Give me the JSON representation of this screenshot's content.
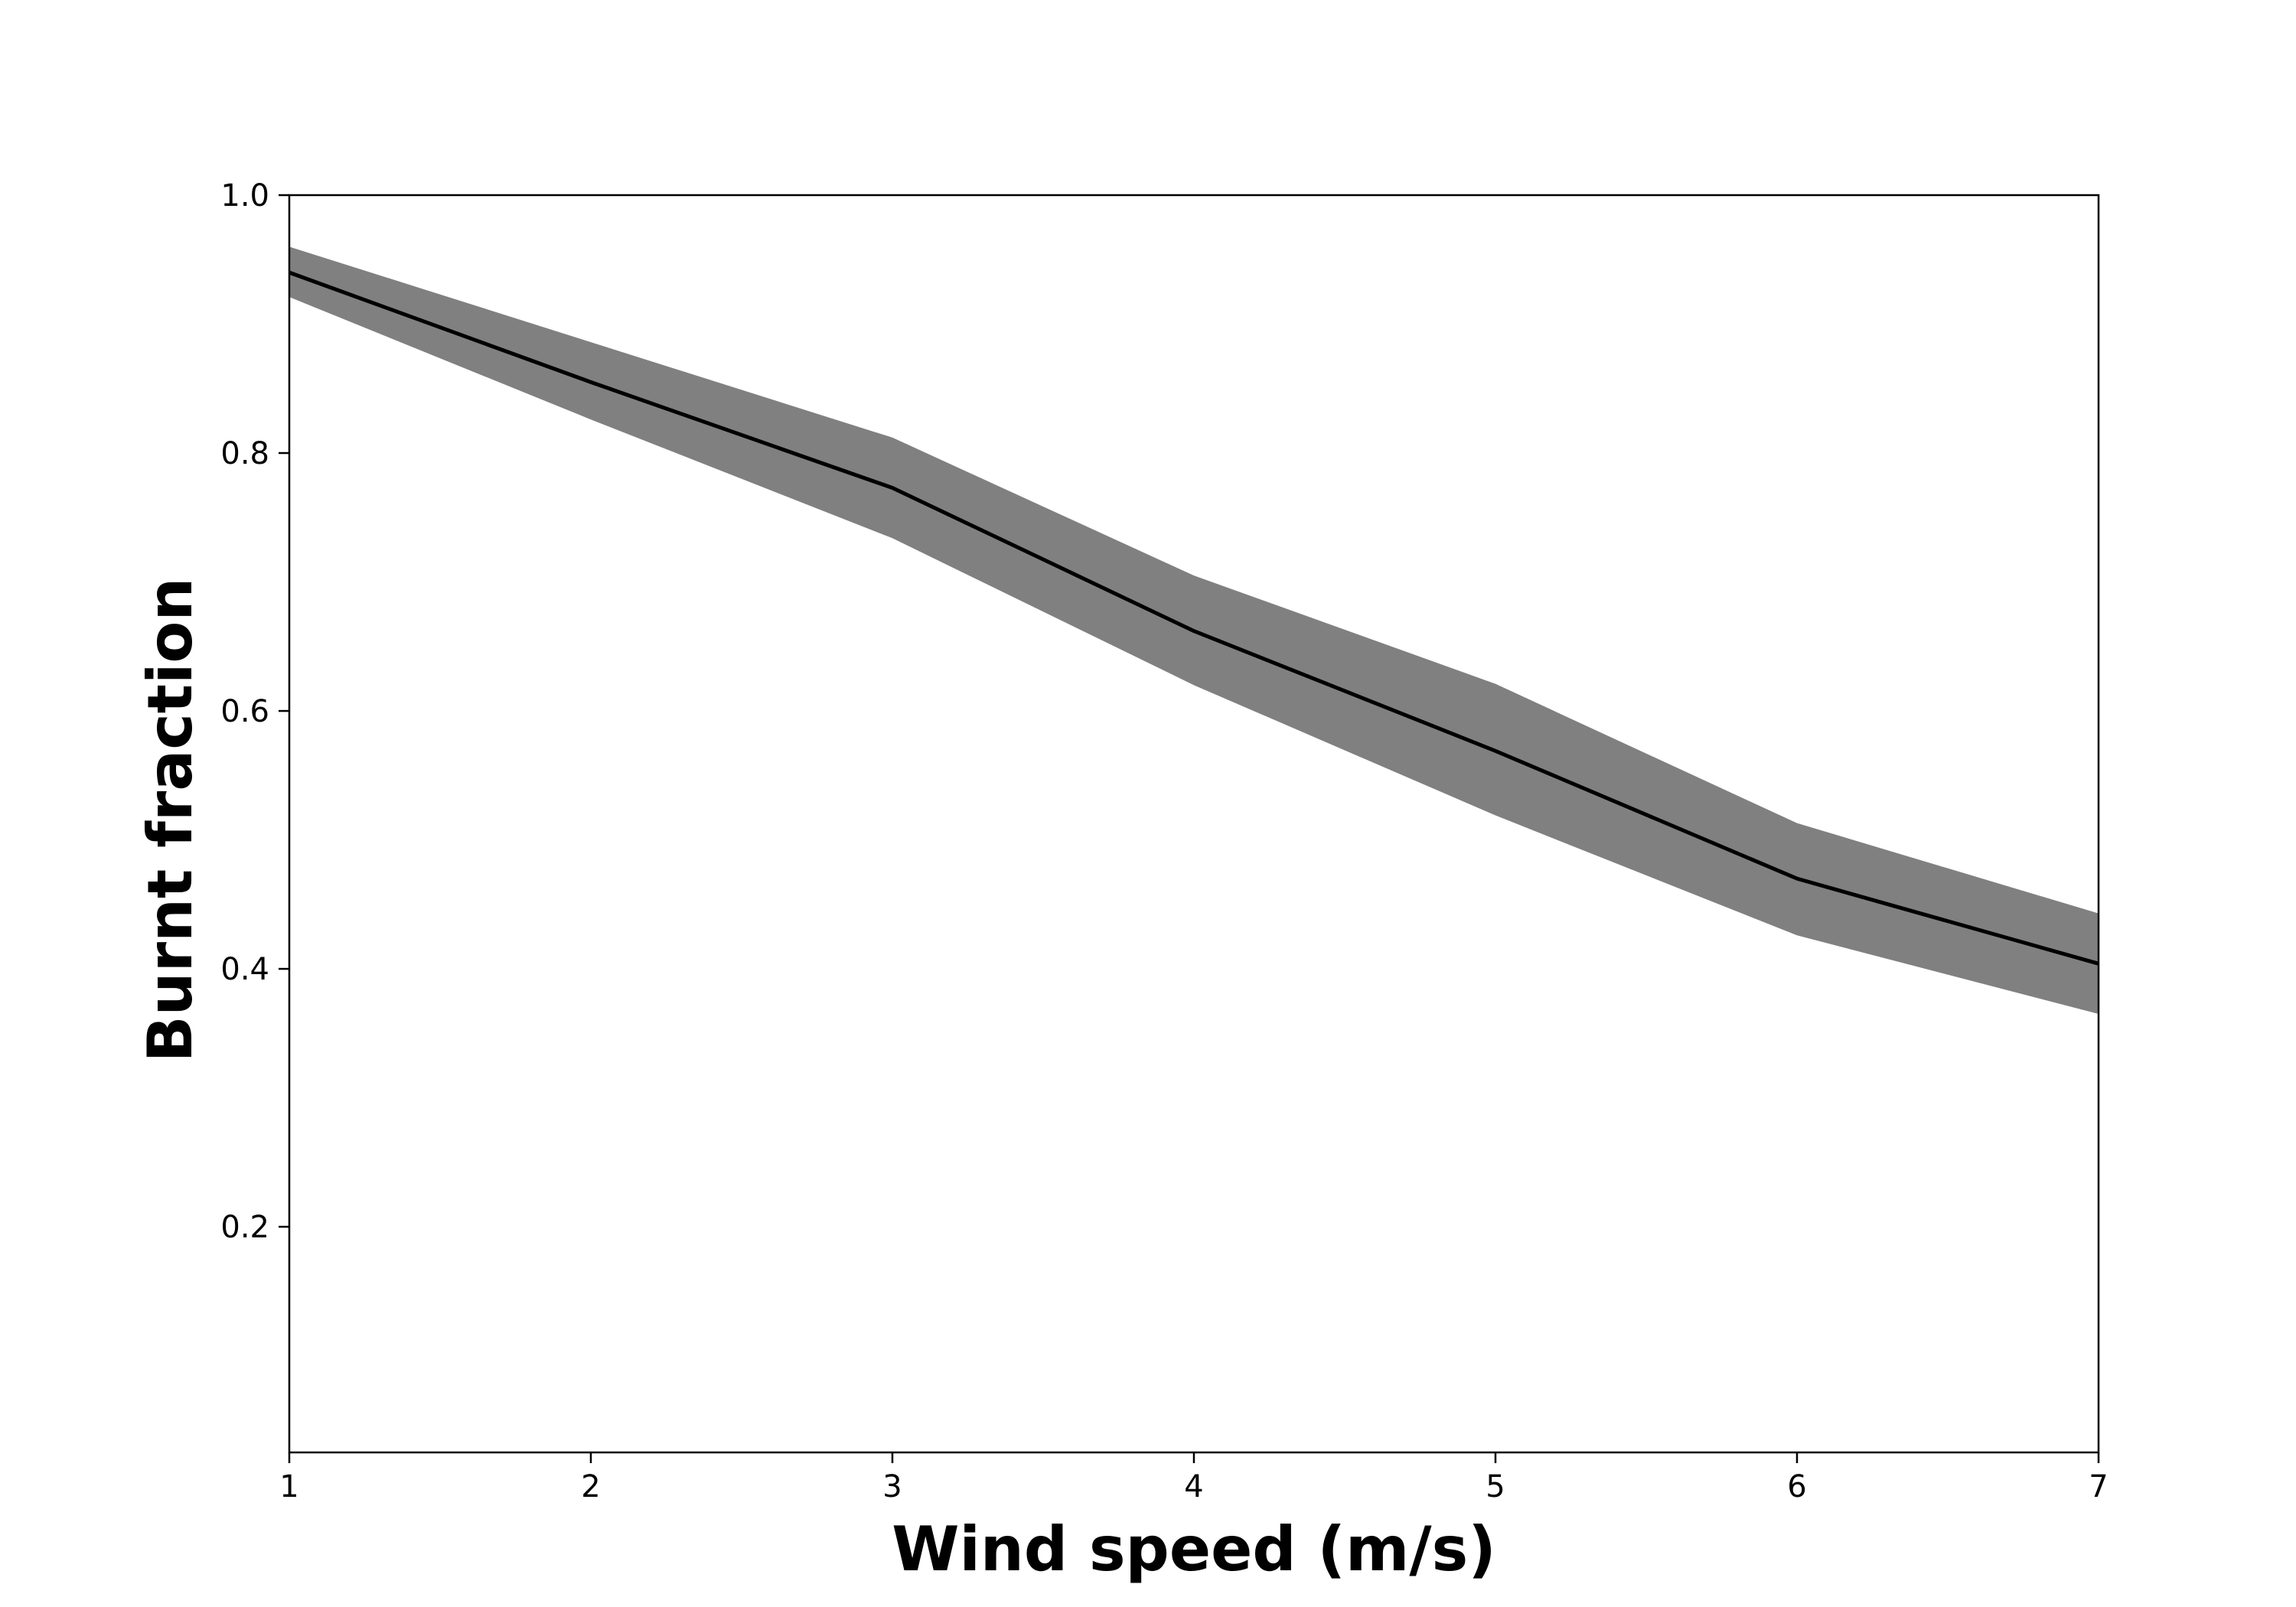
{
  "chart_data": {
    "type": "line",
    "xlabel": "Wind speed (m/s)",
    "ylabel": "Burnt fraction",
    "xlim": [
      1,
      7
    ],
    "ylim": [
      0.025,
      1.0
    ],
    "xticks": [
      1,
      2,
      3,
      4,
      5,
      6,
      7
    ],
    "xtick_labels": [
      "1",
      "2",
      "3",
      "4",
      "5",
      "6",
      "7"
    ],
    "yticks": [
      0.2,
      0.4,
      0.6,
      0.8,
      1.0
    ],
    "ytick_labels": [
      "0.2",
      "0.4",
      "0.6",
      "0.8",
      "1.0"
    ],
    "grid": false,
    "series": [
      {
        "x": [
          1,
          2,
          3,
          4,
          5,
          6,
          7
        ],
        "values": [
          0.94,
          0.855,
          0.773,
          0.662,
          0.569,
          0.47,
          0.404
        ],
        "lower": [
          0.921,
          0.826,
          0.734,
          0.62,
          0.519,
          0.426,
          0.365
        ],
        "upper": [
          0.96,
          0.886,
          0.812,
          0.705,
          0.621,
          0.513,
          0.443
        ],
        "line_color": "#000000",
        "band_color": "#808080"
      }
    ]
  }
}
